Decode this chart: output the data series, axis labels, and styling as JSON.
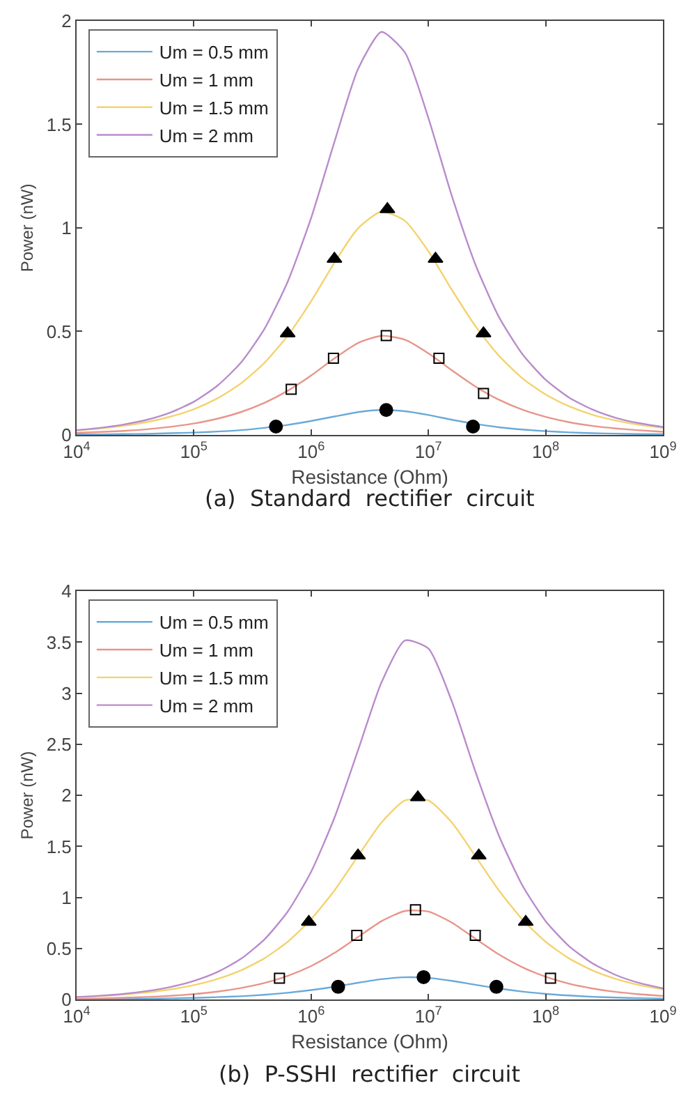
{
  "chart_data": [
    {
      "type": "line",
      "xlabel": "Resistance (Ohm)",
      "ylabel": "Power (nW)",
      "annotations": [
        "(a)  Standard  rectifier  circuit"
      ],
      "x": [
        10000,
        15850,
        25120,
        39810,
        63100,
        100000,
        158500,
        251200,
        398100,
        631000,
        1000000,
        1585000,
        2512000,
        3981000,
        6310000,
        10000000,
        15850000,
        25120000,
        39810000,
        63100000,
        100000000,
        158500000,
        251200000,
        398100000,
        631000000,
        1000000000
      ],
      "xlim": [
        10000,
        1000000000
      ],
      "xticks": [
        {
          "value": 10000,
          "label": "10$^{4}$"
        },
        {
          "value": 100000,
          "label": "10$^{5}$"
        },
        {
          "value": 1000000,
          "label": "10$^{6}$"
        },
        {
          "value": 10000000,
          "label": "10$^{7}$"
        },
        {
          "value": 100000000,
          "label": "10$^{8}$"
        },
        {
          "value": 1000000000,
          "label": "10$^{9}$"
        }
      ],
      "ylim": [
        0,
        2
      ],
      "yticks": [
        0,
        0.5,
        1,
        1.5,
        2
      ],
      "log": "x",
      "legend": "top left",
      "series": [
        {
          "name": "Um = 0.5 mm",
          "color": "#6aaad8",
          "marker": "none",
          "values": [
            0.002,
            0.002,
            0.004,
            0.005,
            0.008,
            0.011,
            0.016,
            0.023,
            0.034,
            0.048,
            0.067,
            0.089,
            0.11,
            0.12,
            0.114,
            0.096,
            0.073,
            0.053,
            0.037,
            0.026,
            0.018,
            0.012,
            0.008,
            0.006,
            0.004,
            0.003
          ]
        },
        {
          "name": "Um = 1 mm",
          "color": "#e8958a",
          "marker": "none",
          "values": [
            0.01,
            0.014,
            0.019,
            0.027,
            0.039,
            0.055,
            0.078,
            0.11,
            0.154,
            0.213,
            0.287,
            0.37,
            0.444,
            0.479,
            0.46,
            0.394,
            0.312,
            0.234,
            0.17,
            0.122,
            0.087,
            0.061,
            0.043,
            0.031,
            0.022,
            0.015
          ]
        },
        {
          "name": "Um = 1.5 mm",
          "color": "#f3d36e",
          "marker": "none",
          "values": [
            0.022,
            0.031,
            0.044,
            0.062,
            0.088,
            0.124,
            0.176,
            0.248,
            0.347,
            0.479,
            0.646,
            0.833,
            0.998,
            1.079,
            1.034,
            0.887,
            0.701,
            0.526,
            0.383,
            0.274,
            0.195,
            0.138,
            0.097,
            0.069,
            0.048,
            0.034
          ]
        },
        {
          "name": "Um = 2 mm",
          "color": "#b98ccb",
          "marker": "none",
          "values": [
            0.023,
            0.034,
            0.05,
            0.073,
            0.108,
            0.16,
            0.237,
            0.348,
            0.51,
            0.74,
            1.048,
            1.418,
            1.768,
            1.947,
            1.847,
            1.531,
            1.154,
            0.824,
            0.571,
            0.391,
            0.266,
            0.18,
            0.122,
            0.082,
            0.056,
            0.038
          ]
        },
        {
          "type": "scatter",
          "color": "#000000",
          "marker": "circle",
          "x": [
            501000,
            4370000,
            24000000
          ],
          "values": [
            0.04,
            0.12,
            0.04
          ]
        },
        {
          "type": "scatter",
          "color": "#000000",
          "marker": "square",
          "x": [
            676000,
            1550000,
            4370000,
            12300000,
            29500000
          ],
          "values": [
            0.22,
            0.37,
            0.48,
            0.37,
            0.2
          ]
        },
        {
          "type": "scatter",
          "color": "#000000",
          "marker": "triangle",
          "x": [
            631000,
            1580000,
            4470000,
            11500000,
            29500000
          ],
          "values": [
            0.49,
            0.85,
            1.09,
            0.85,
            0.49
          ]
        }
      ]
    },
    {
      "type": "line",
      "xlabel": "Resistance (Ohm)",
      "ylabel": "Power (nW)",
      "annotations": [
        "(b)  P-SSHI  rectifier  circuit"
      ],
      "x": [
        10000,
        15850,
        25120,
        39810,
        63100,
        100000,
        158500,
        251200,
        398100,
        631000,
        1000000,
        1585000,
        2512000,
        3981000,
        6310000,
        10000000,
        15850000,
        25120000,
        39810000,
        63100000,
        100000000,
        158500000,
        251200000,
        398100000,
        631000000,
        1000000000
      ],
      "xlim": [
        10000,
        1000000000
      ],
      "xticks": [
        {
          "value": 10000,
          "label": "10$^{4}$"
        },
        {
          "value": 100000,
          "label": "10$^{5}$"
        },
        {
          "value": 1000000,
          "label": "10$^{6}$"
        },
        {
          "value": 10000000,
          "label": "10$^{7}$"
        },
        {
          "value": 100000000,
          "label": "10$^{8}$"
        },
        {
          "value": 1000000000,
          "label": "10$^{9}$"
        }
      ],
      "ylim": [
        0,
        4
      ],
      "yticks": [
        0,
        0.5,
        1,
        1.5,
        2,
        2.5,
        3,
        3.5,
        4
      ],
      "log": "x",
      "legend": "top left",
      "series": [
        {
          "name": "Um = 0.5 mm",
          "color": "#6aaad8",
          "marker": "none",
          "values": [
            0.003,
            0.004,
            0.006,
            0.008,
            0.012,
            0.017,
            0.024,
            0.033,
            0.047,
            0.067,
            0.093,
            0.126,
            0.165,
            0.2,
            0.219,
            0.212,
            0.184,
            0.145,
            0.109,
            0.079,
            0.056,
            0.04,
            0.028,
            0.02,
            0.014,
            0.01
          ]
        },
        {
          "name": "Um = 1 mm",
          "color": "#e8958a",
          "marker": "none",
          "values": [
            0.009,
            0.012,
            0.018,
            0.026,
            0.037,
            0.054,
            0.078,
            0.113,
            0.162,
            0.232,
            0.329,
            0.458,
            0.613,
            0.768,
            0.868,
            0.862,
            0.754,
            0.597,
            0.443,
            0.318,
            0.224,
            0.156,
            0.109,
            0.075,
            0.052,
            0.036
          ]
        },
        {
          "name": "Um = 1.5 mm",
          "color": "#f3d36e",
          "marker": "none",
          "values": [
            0.025,
            0.035,
            0.05,
            0.071,
            0.1,
            0.142,
            0.202,
            0.285,
            0.403,
            0.566,
            0.786,
            1.071,
            1.406,
            1.735,
            1.95,
            1.95,
            1.735,
            1.406,
            1.071,
            0.786,
            0.566,
            0.403,
            0.285,
            0.202,
            0.142,
            0.1
          ]
        },
        {
          "name": "Um = 2 mm",
          "color": "#b98ccb",
          "marker": "none",
          "values": [
            0.026,
            0.038,
            0.056,
            0.084,
            0.123,
            0.183,
            0.27,
            0.398,
            0.587,
            0.861,
            1.252,
            1.784,
            2.442,
            3.106,
            3.517,
            3.438,
            2.92,
            2.235,
            1.609,
            1.121,
            0.768,
            0.523,
            0.355,
            0.24,
            0.162,
            0.11
          ]
        },
        {
          "type": "scatter",
          "color": "#000000",
          "marker": "circle",
          "x": [
            1700000,
            9100000,
            38000000
          ],
          "values": [
            0.125,
            0.22,
            0.125
          ]
        },
        {
          "type": "scatter",
          "color": "#000000",
          "marker": "square",
          "x": [
            537000,
            2450000,
            7760000,
            25100000,
            110000000
          ],
          "values": [
            0.21,
            0.63,
            0.88,
            0.63,
            0.21
          ]
        },
        {
          "type": "scatter",
          "color": "#000000",
          "marker": "triangle",
          "x": [
            955000,
            2510000,
            8130000,
            26900000,
            67600000
          ],
          "values": [
            0.76,
            1.41,
            1.98,
            1.41,
            0.76
          ]
        }
      ]
    }
  ]
}
